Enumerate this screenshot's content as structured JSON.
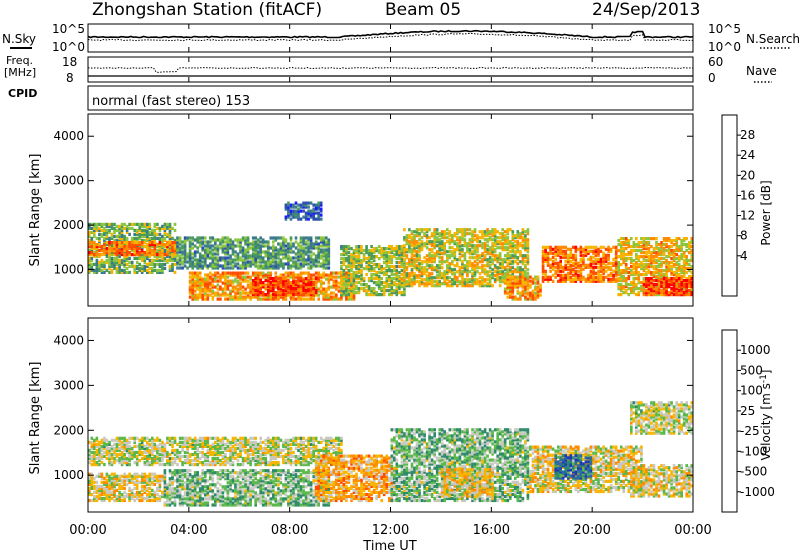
{
  "header": {
    "station": "Zhongshan Station (fitACF)",
    "beam": "Beam 05",
    "date": "24/Sep/2013"
  },
  "noise_panel": {
    "left_label": "N.Sky",
    "right_label": "N.Search",
    "y_ticks": [
      "10^5",
      "10^0"
    ],
    "right_legend_style": "dotted"
  },
  "freq_panel": {
    "left_label_1": "Freq.",
    "left_label_2": "[MHz]",
    "right_label": "Nave",
    "left_ticks": [
      "18",
      "8"
    ],
    "right_ticks": [
      "60",
      "0"
    ]
  },
  "cpid": {
    "label": "CPID",
    "text": "normal (fast stereo) 153"
  },
  "x_axis": {
    "ticks": [
      "00:00",
      "04:00",
      "08:00",
      "12:00",
      "16:00",
      "20:00",
      "00:00"
    ],
    "title": "Time UT"
  },
  "power_panel": {
    "ylabel": "Slant Range [km]",
    "y_ticks": [
      "4000",
      "3000",
      "2000",
      "1000"
    ],
    "colorbar_label": "Power [dB]",
    "colorbar_ticks": [
      "28",
      "24",
      "20",
      "16",
      "12",
      "8",
      "4"
    ],
    "colors": [
      "#1a1aff",
      "#2b4fb0",
      "#3a7a8a",
      "#4a9a5a",
      "#8cc63f",
      "#f7b500",
      "#ff8a00",
      "#ff4a00",
      "#ff0000"
    ]
  },
  "velocity_panel": {
    "ylabel": "Slant Range [km]",
    "y_ticks": [
      "4000",
      "3000",
      "2000",
      "1000"
    ],
    "colorbar_label_main": "Velocity [m s",
    "colorbar_label_sup": "-1",
    "colorbar_label_end": "]",
    "colorbar_ticks": [
      "1000",
      "500",
      "100",
      "25",
      "-25",
      "-100",
      "-500",
      "-1000"
    ],
    "colors": [
      "#1a3cb4",
      "#2a6aa8",
      "#2f8a6a",
      "#5ab84a",
      "#c8c8c0",
      "#f7b500",
      "#ff8a00",
      "#ff4a00",
      "#ff0000"
    ]
  },
  "chart_data": [
    {
      "type": "heatmap",
      "name_in_image": "Power [dB]",
      "x": {
        "range": [
          0,
          24
        ],
        "unit": "h UT"
      },
      "y": {
        "range": [
          180,
          4500
        ],
        "unit": "km"
      },
      "colorbar": {
        "range": [
          0,
          32
        ]
      },
      "regions": [
        {
          "t0": 0.0,
          "t1": 3.5,
          "r0": 900,
          "r1": 2000,
          "level": 14
        },
        {
          "t0": 0.0,
          "t1": 3.5,
          "r0": 1300,
          "r1": 1600,
          "level": 24
        },
        {
          "t0": 3.5,
          "t1": 9.5,
          "r0": 1000,
          "r1": 1700,
          "level": 12
        },
        {
          "t0": 4.0,
          "t1": 10.5,
          "r0": 300,
          "r1": 900,
          "level": 22
        },
        {
          "t0": 6.5,
          "t1": 9.0,
          "r0": 400,
          "r1": 800,
          "level": 28
        },
        {
          "t0": 10.0,
          "t1": 12.5,
          "r0": 400,
          "r1": 1500,
          "level": 16
        },
        {
          "t0": 12.5,
          "t1": 17.5,
          "r0": 600,
          "r1": 1900,
          "level": 18
        },
        {
          "t0": 16.5,
          "t1": 18.0,
          "r0": 300,
          "r1": 800,
          "level": 22
        },
        {
          "t0": 18.0,
          "t1": 21.0,
          "r0": 700,
          "r1": 1500,
          "level": 24
        },
        {
          "t0": 21.0,
          "t1": 24.0,
          "r0": 400,
          "r1": 1700,
          "level": 20
        },
        {
          "t0": 22.0,
          "t1": 24.0,
          "r0": 400,
          "r1": 800,
          "level": 28
        },
        {
          "t0": 7.8,
          "t1": 9.2,
          "r0": 2100,
          "r1": 2500,
          "level": 6
        }
      ]
    },
    {
      "type": "heatmap",
      "name_in_image": "Velocity [m s-1]",
      "x": {
        "range": [
          0,
          24
        ],
        "unit": "h UT"
      },
      "y": {
        "range": [
          180,
          4500
        ],
        "unit": "km"
      },
      "colorbar": {
        "range": [
          -1000,
          1000
        ]
      },
      "regions": [
        {
          "t0": 0.0,
          "t1": 10.0,
          "r0": 1200,
          "r1": 1800,
          "level": 0
        },
        {
          "t0": 0.0,
          "t1": 3.0,
          "r0": 400,
          "r1": 1000,
          "level": 100
        },
        {
          "t0": 3.0,
          "t1": 9.5,
          "r0": 300,
          "r1": 1100,
          "level": -200
        },
        {
          "t0": 9.0,
          "t1": 12.0,
          "r0": 400,
          "r1": 1400,
          "level": 300
        },
        {
          "t0": 12.0,
          "t1": 17.5,
          "r0": 400,
          "r1": 2000,
          "level": -200
        },
        {
          "t0": 14.0,
          "t1": 16.0,
          "r0": 500,
          "r1": 1100,
          "level": 150
        },
        {
          "t0": 17.5,
          "t1": 22.0,
          "r0": 600,
          "r1": 1600,
          "level": 120
        },
        {
          "t0": 18.5,
          "t1": 20.0,
          "r0": 900,
          "r1": 1400,
          "level": -600
        },
        {
          "t0": 21.5,
          "t1": 24.0,
          "r0": 500,
          "r1": 1200,
          "level": 80
        },
        {
          "t0": 21.5,
          "t1": 24.0,
          "r0": 1900,
          "r1": 2600,
          "level": 0
        }
      ]
    }
  ]
}
